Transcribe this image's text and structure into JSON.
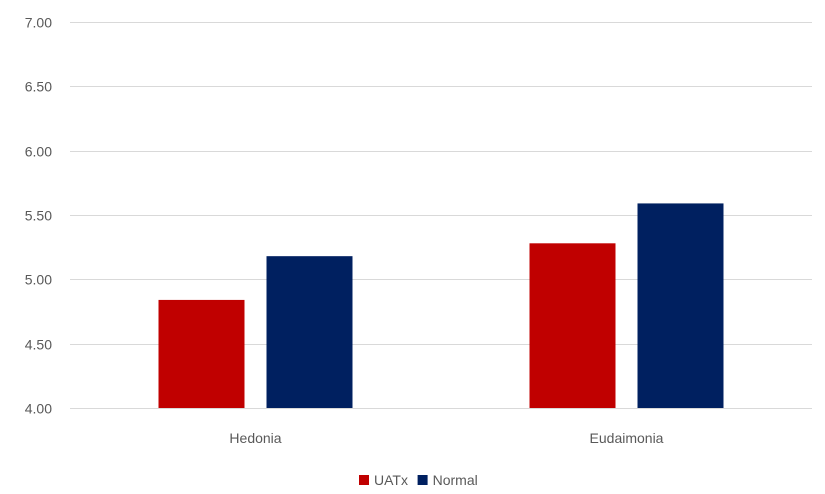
{
  "chart_data": {
    "type": "bar",
    "title": "",
    "xlabel": "",
    "ylabel": "",
    "categories": [
      "Hedonia",
      "Eudaimonia"
    ],
    "series": [
      {
        "name": "UATx",
        "color": "#c00000",
        "values": [
          4.84,
          5.28
        ]
      },
      {
        "name": "Normal",
        "color": "#002060",
        "values": [
          5.18,
          5.59
        ]
      }
    ],
    "ylim": [
      4.0,
      7.0
    ],
    "yticks": [
      4.0,
      4.5,
      5.0,
      5.5,
      6.0,
      6.5,
      7.0
    ],
    "ytick_labels": [
      "4.00",
      "4.50",
      "5.00",
      "5.50",
      "6.00",
      "6.50",
      "7.00"
    ],
    "grid": true,
    "legend_position": "bottom"
  }
}
